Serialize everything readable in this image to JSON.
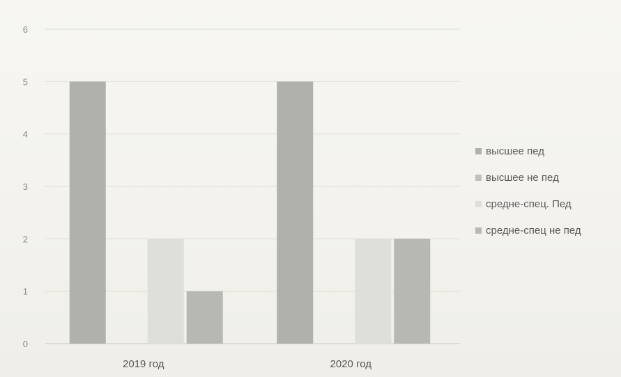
{
  "chart_data": {
    "type": "bar",
    "title": "",
    "xlabel": "",
    "ylabel": "",
    "categories": [
      "2019 год",
      "2020 год"
    ],
    "ylim": [
      0,
      6
    ],
    "yticks": [
      "0",
      "1",
      "2",
      "3",
      "4",
      "5",
      "6"
    ],
    "grid": true,
    "legend_position": "right",
    "series": [
      {
        "name": "высшее пед",
        "values": [
          5,
          5
        ],
        "color": "#b0b0ad"
      },
      {
        "name": "высшее не пед",
        "values": [
          0,
          0
        ],
        "color": "#c0c0bd"
      },
      {
        "name": "средне-спец. Пед",
        "values": [
          2,
          2
        ],
        "color": "#dededb"
      },
      {
        "name": "средне-спец не пед",
        "values": [
          1,
          2
        ],
        "color": "#b7b7b4"
      }
    ]
  }
}
